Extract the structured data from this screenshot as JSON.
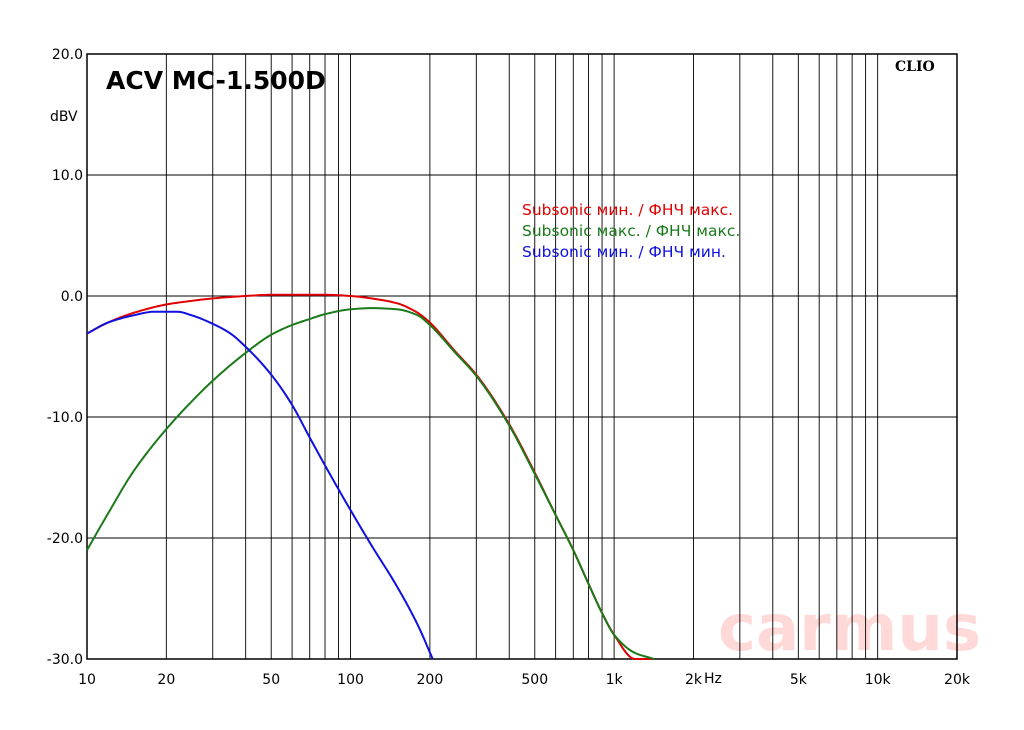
{
  "chart_data": {
    "type": "line",
    "title": "ACV MC-1.500D",
    "brand": "CLIO",
    "watermark": "carmus",
    "ylabel": "dBV",
    "xunit": "Hz",
    "xscale": "log",
    "xlim": [
      10,
      20000
    ],
    "ylim": [
      -30,
      20
    ],
    "grid": true,
    "legend_position": "upper-center",
    "x_ticks": [
      {
        "value": 10,
        "label": "10"
      },
      {
        "value": 20,
        "label": "20"
      },
      {
        "value": 50,
        "label": "50"
      },
      {
        "value": 100,
        "label": "100"
      },
      {
        "value": 200,
        "label": "200"
      },
      {
        "value": 500,
        "label": "500"
      },
      {
        "value": 1000,
        "label": "1k"
      },
      {
        "value": 2000,
        "label": "2k"
      },
      {
        "value": 5000,
        "label": "5k"
      },
      {
        "value": 10000,
        "label": "10k"
      },
      {
        "value": 20000,
        "label": "20k"
      }
    ],
    "y_ticks": [
      {
        "value": 20,
        "label": "20.0"
      },
      {
        "value": 10,
        "label": "10.0"
      },
      {
        "value": 0,
        "label": "0.0"
      },
      {
        "value": -10,
        "label": "-10.0"
      },
      {
        "value": -20,
        "label": "-20.0"
      },
      {
        "value": -30,
        "label": "-30.0"
      }
    ],
    "series": [
      {
        "name": "Subsonic мин. / ФНЧ макс.",
        "color": "#e00000",
        "x": [
          10,
          12,
          15,
          20,
          25,
          30,
          40,
          50,
          60,
          80,
          100,
          120,
          150,
          180,
          200,
          250,
          300,
          400,
          500,
          600,
          700,
          800,
          900,
          1000,
          1200,
          1400
        ],
        "y": [
          -3.1,
          -2.2,
          -1.4,
          -0.7,
          -0.4,
          -0.2,
          0.0,
          0.1,
          0.1,
          0.1,
          0.0,
          -0.2,
          -0.6,
          -1.4,
          -2.2,
          -4.6,
          -6.5,
          -10.6,
          -14.6,
          -18.1,
          -21.0,
          -23.8,
          -26.2,
          -28.0,
          -30.0,
          -30.0
        ]
      },
      {
        "name": "Subsonic макс. / ФНЧ макс.",
        "color": "#1a7a1a",
        "x": [
          10,
          12,
          15,
          20,
          25,
          30,
          40,
          50,
          60,
          70,
          80,
          100,
          120,
          150,
          180,
          200,
          250,
          300,
          400,
          500,
          600,
          700,
          800,
          900,
          1000,
          1200,
          1420
        ],
        "y": [
          -21.0,
          -18.0,
          -14.5,
          -11.0,
          -8.7,
          -7.0,
          -4.7,
          -3.2,
          -2.4,
          -1.9,
          -1.5,
          -1.1,
          -1.0,
          -1.1,
          -1.6,
          -2.4,
          -4.7,
          -6.6,
          -10.7,
          -14.7,
          -18.1,
          -21.0,
          -23.8,
          -26.2,
          -28.0,
          -29.5,
          -30.0
        ]
      },
      {
        "name": "Subsonic мин. / ФНЧ мин.",
        "color": "#1010e0",
        "x": [
          10,
          12,
          15,
          18,
          20,
          22,
          25,
          30,
          35,
          40,
          50,
          60,
          70,
          80,
          100,
          120,
          150,
          180,
          205
        ],
        "y": [
          -3.1,
          -2.2,
          -1.6,
          -1.3,
          -1.3,
          -1.3,
          -1.6,
          -2.3,
          -3.1,
          -4.2,
          -6.5,
          -9.0,
          -11.7,
          -14.0,
          -17.7,
          -20.6,
          -24.0,
          -27.2,
          -30.0
        ]
      }
    ]
  }
}
